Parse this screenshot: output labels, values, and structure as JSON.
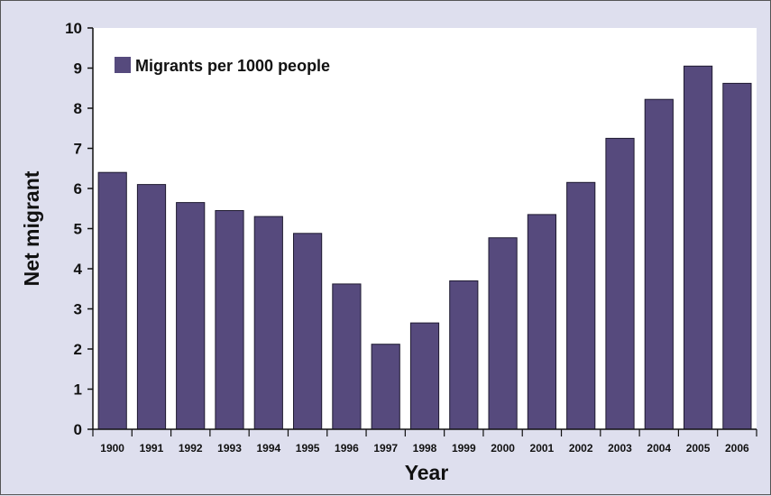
{
  "chart_data": {
    "type": "bar",
    "title": "",
    "xlabel": "Year",
    "ylabel": "Net migrant",
    "ylim": [
      0,
      10
    ],
    "yticks": [
      "0",
      "1",
      "2",
      "3",
      "4",
      "5",
      "6",
      "7",
      "8",
      "9",
      "10"
    ],
    "categories": [
      "1900",
      "1991",
      "1992",
      "1993",
      "1994",
      "1995",
      "1996",
      "1997",
      "1998",
      "1999",
      "2000",
      "2001",
      "2002",
      "2003",
      "2004",
      "2005",
      "2006"
    ],
    "series": [
      {
        "name": "Migrants per 1000 people",
        "values": [
          6.4,
          6.1,
          5.65,
          5.45,
          5.3,
          4.88,
          3.62,
          2.12,
          2.65,
          3.7,
          4.77,
          5.35,
          6.15,
          7.25,
          8.22,
          9.05,
          8.62
        ]
      }
    ],
    "legend_position": "top-left",
    "grid": false,
    "colors": {
      "bar": "#564a7d",
      "bar_stroke": "#1e1a30",
      "background": "#dedfee",
      "plot_background": "#ffffff"
    }
  }
}
